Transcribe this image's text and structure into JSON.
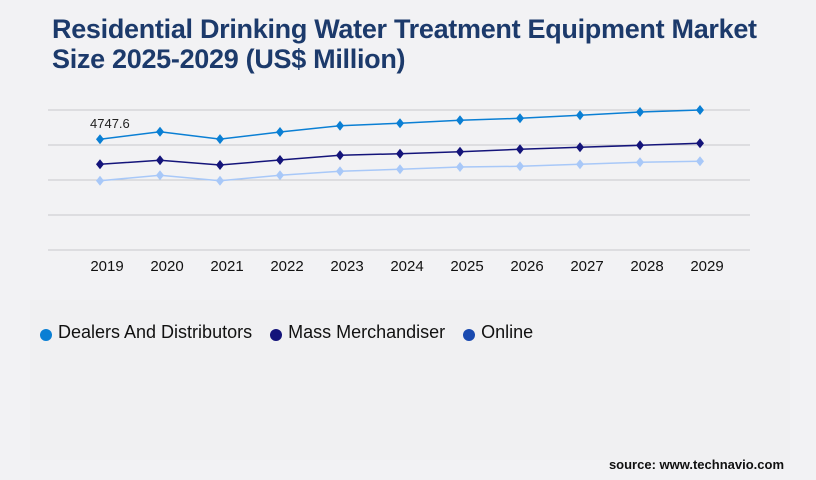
{
  "title": "Residential Drinking Water Treatment Equipment Market Size 2025-2029 (US$ Million)",
  "source": "source: www.technavio.com",
  "chart_data": {
    "type": "line",
    "title": "Residential Drinking Water Treatment Equipment Market Size 2025-2029 (US$ Million)",
    "categories": [
      "2019",
      "2020",
      "2021",
      "2022",
      "2023",
      "2024",
      "2025",
      "2026",
      "2027",
      "2028",
      "2029"
    ],
    "ylim": [
      0,
      6000
    ],
    "grid": true,
    "legend_position": "bottom-left",
    "annotation": {
      "series": 0,
      "index": 0,
      "text": "4747.6"
    },
    "series": [
      {
        "name": "Dealers And Distributors",
        "color": "#0a7fd4",
        "legend_color": "#0a7fd4",
        "values": [
          4747.6,
          5070,
          4750,
          5057,
          5327,
          5430,
          5559,
          5644,
          5773,
          5914,
          6000
        ]
      },
      {
        "name": "Mass Merchandiser",
        "color": "#14147a",
        "legend_color": "#14147a",
        "values": [
          3673,
          3844,
          3643,
          3857,
          4059,
          4127,
          4213,
          4316,
          4401,
          4487,
          4573
        ]
      },
      {
        "name": "Online",
        "color": "#a8c8f8",
        "legend_color": "#1a4ab0",
        "values": [
          2970,
          3201,
          2970,
          3201,
          3373,
          3459,
          3557,
          3587,
          3673,
          3759,
          3801
        ]
      }
    ]
  }
}
